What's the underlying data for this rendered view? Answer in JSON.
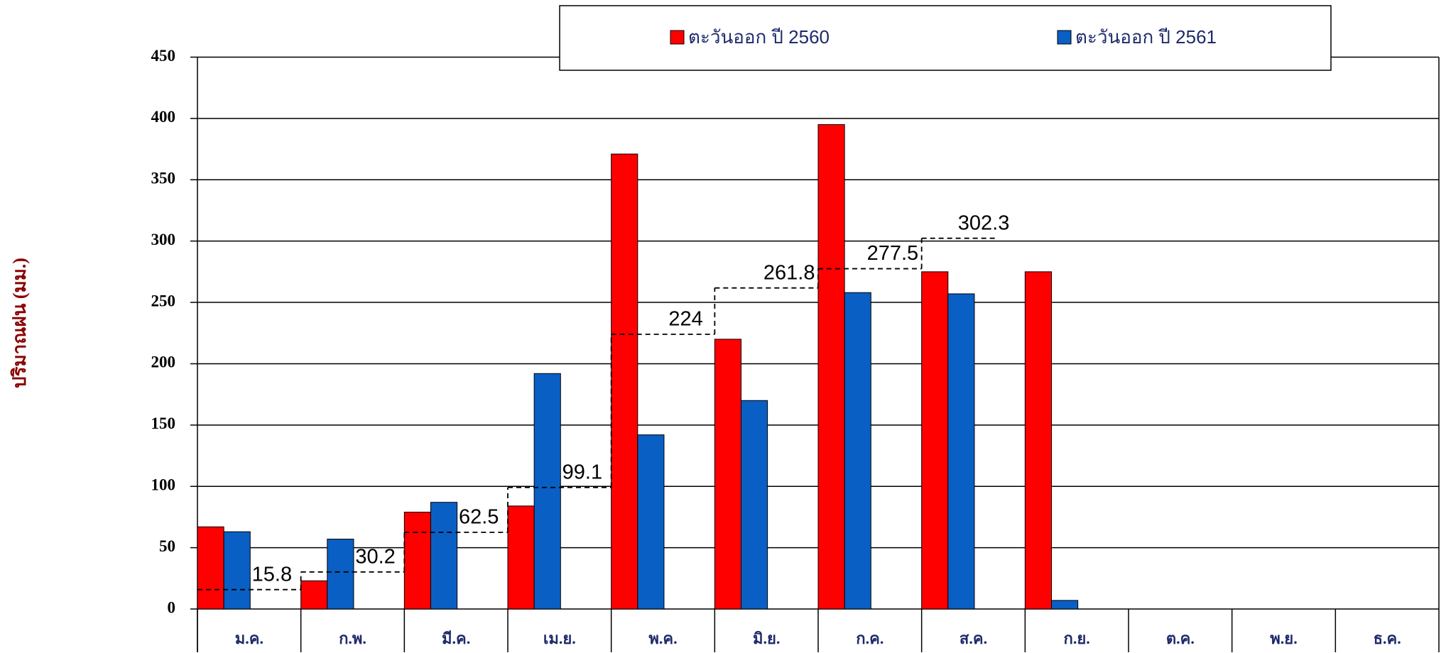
{
  "chart_data": {
    "type": "bar",
    "y_axis_label": "ปริมาณฝน (มม.)",
    "categories": [
      "ม.ค.",
      "ก.พ.",
      "มี.ค.",
      "เม.ย.",
      "พ.ค.",
      "มิ.ย.",
      "ก.ค.",
      "ส.ค.",
      "ก.ย.",
      "ต.ค.",
      "พ.ย.",
      "ธ.ค."
    ],
    "series": [
      {
        "name": "ตะวันออก ปี 2560",
        "color": "#ff0000",
        "values": [
          67,
          23,
          79,
          84,
          371,
          220,
          395,
          275,
          275,
          null,
          null,
          null
        ]
      },
      {
        "name": "ตะวันออก ปี 2561",
        "color": "#0a5fc4",
        "values": [
          63,
          57,
          87,
          192,
          142,
          170,
          258,
          257,
          7,
          null,
          null,
          null
        ]
      }
    ],
    "step_line": {
      "values": [
        15.8,
        30.2,
        62.5,
        99.1,
        224,
        261.8,
        277.5,
        302.3,
        null,
        null,
        null,
        null
      ]
    },
    "ylim": [
      0,
      450
    ],
    "yticks": [
      0,
      50,
      100,
      150,
      200,
      250,
      300,
      350,
      400,
      450
    ],
    "grid": true,
    "legend": "top"
  }
}
